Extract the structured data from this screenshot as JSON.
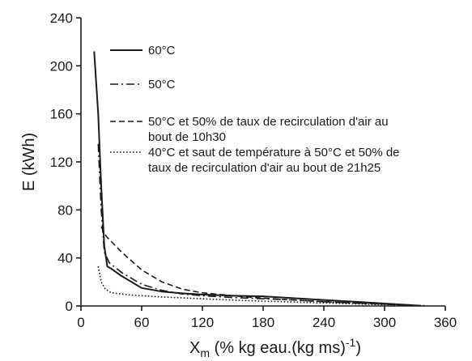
{
  "chart_data": {
    "type": "line",
    "title": "",
    "xlabel": {
      "main": "X",
      "sub": "m",
      "rest": " (% kg eau.(kg ms)",
      "sup": "-1",
      "end": ")"
    },
    "ylabel": "E (kWh)",
    "xlim": [
      0,
      360
    ],
    "ylim": [
      0,
      240
    ],
    "xticks": [
      0,
      60,
      120,
      180,
      240,
      300,
      360
    ],
    "yticks": [
      0,
      40,
      80,
      120,
      160,
      200,
      240
    ],
    "grid": false,
    "legend_position": "top-right",
    "series": [
      {
        "name": "60°C",
        "style": "solid",
        "color": "#1a1a1a",
        "points": [
          [
            13,
            212
          ],
          [
            17,
            160
          ],
          [
            20,
            100
          ],
          [
            23,
            50
          ],
          [
            26,
            33
          ],
          [
            30,
            31
          ],
          [
            40,
            25
          ],
          [
            60,
            15
          ],
          [
            80,
            12
          ],
          [
            100,
            10.5
          ],
          [
            120,
            9.5
          ],
          [
            150,
            8.5
          ],
          [
            180,
            8
          ],
          [
            210,
            6.5
          ],
          [
            240,
            5
          ],
          [
            270,
            3.5
          ],
          [
            300,
            2
          ],
          [
            320,
            1
          ],
          [
            335,
            0.3
          ]
        ]
      },
      {
        "name": "50°C",
        "style": "dashdot",
        "color": "#1a1a1a",
        "points": [
          [
            17,
            135
          ],
          [
            20,
            80
          ],
          [
            23,
            45
          ],
          [
            28,
            36
          ],
          [
            40,
            28
          ],
          [
            60,
            18
          ],
          [
            80,
            13
          ],
          [
            100,
            10
          ],
          [
            120,
            8.5
          ],
          [
            150,
            7
          ],
          [
            180,
            6
          ],
          [
            210,
            5
          ],
          [
            240,
            3.5
          ],
          [
            270,
            2.5
          ],
          [
            300,
            1.5
          ],
          [
            330,
            0.3
          ]
        ]
      },
      {
        "name": "50°C et 50% de taux de recirculation d'air au bout de 10h30",
        "name_lines": [
          "50°C et 50% de taux de recirculation d'air au",
          "bout de 10h30"
        ],
        "style": "dashed",
        "color": "#1a1a1a",
        "points": [
          [
            20,
            66
          ],
          [
            25,
            58
          ],
          [
            40,
            45
          ],
          [
            60,
            30
          ],
          [
            80,
            20
          ],
          [
            100,
            14
          ],
          [
            120,
            11
          ],
          [
            150,
            8.5
          ],
          [
            180,
            6.5
          ],
          [
            210,
            5
          ],
          [
            240,
            3.5
          ],
          [
            270,
            2.5
          ],
          [
            300,
            1.5
          ],
          [
            330,
            0.3
          ]
        ]
      },
      {
        "name": "40°C et saut de température à 50°C et 50% de taux de recirculation d'air au bout de 21h25",
        "name_lines": [
          "40°C et saut de température à 50°C et 50% de",
          "taux de recirculation d'air au bout de 21h25"
        ],
        "style": "dotted",
        "color": "#1a1a1a",
        "points": [
          [
            17,
            33
          ],
          [
            20,
            20
          ],
          [
            24,
            14
          ],
          [
            30,
            11
          ],
          [
            50,
            9
          ],
          [
            80,
            7.5
          ],
          [
            120,
            6
          ],
          [
            160,
            4.5
          ],
          [
            200,
            3.5
          ],
          [
            240,
            2.5
          ],
          [
            280,
            1.5
          ],
          [
            320,
            0.7
          ],
          [
            340,
            0.3
          ]
        ]
      }
    ]
  }
}
